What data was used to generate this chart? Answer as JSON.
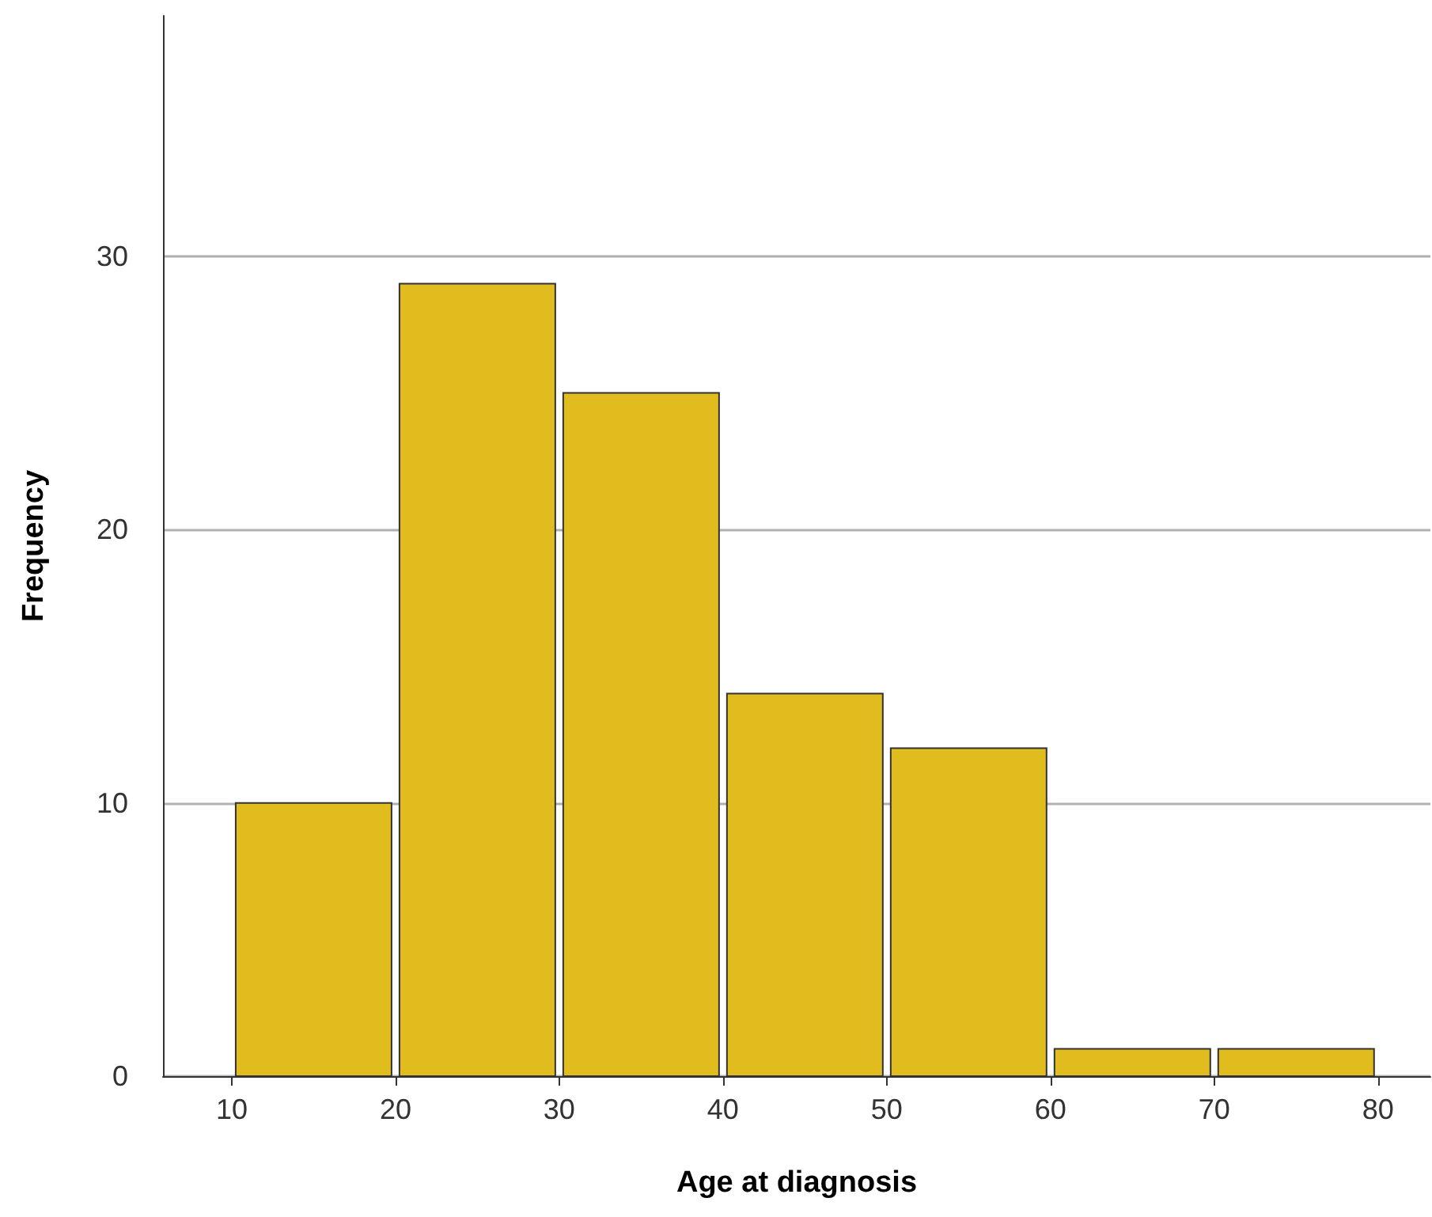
{
  "chart_data": {
    "type": "histogram",
    "xlabel": "Age at diagnosis",
    "ylabel": "Frequency",
    "bins": [
      10,
      20,
      30,
      40,
      50,
      60,
      70,
      80
    ],
    "values": [
      10,
      29,
      25,
      14,
      12,
      1,
      1
    ],
    "color": "#e0bc1e",
    "xlim": [
      5.8,
      83.2
    ],
    "xticks": [
      10,
      20,
      30,
      40,
      50,
      60,
      70,
      80
    ],
    "ylim": [
      0,
      38.8
    ],
    "yticks": [
      0,
      10,
      20,
      30
    ],
    "grid": "y"
  }
}
